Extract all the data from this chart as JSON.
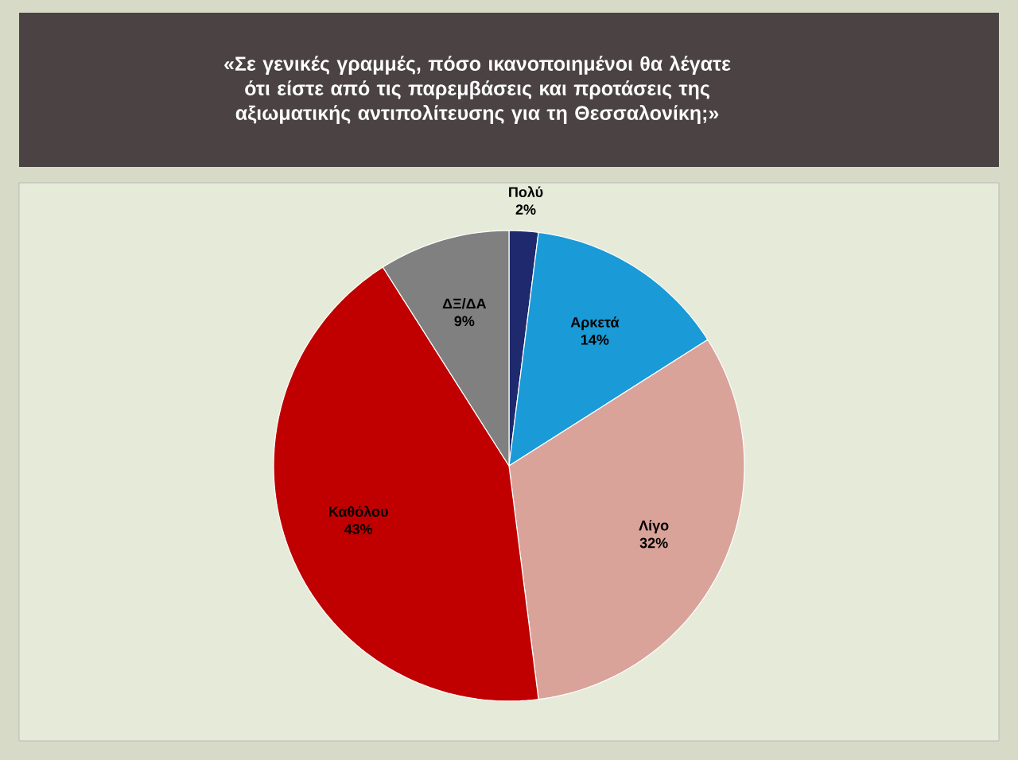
{
  "chart_data": {
    "type": "pie",
    "title": "«Σε γενικές γραμμές, πόσο ικανοποιημένοι θα λέγατε ότι είστε από τις παρεμβάσεις και προτάσεις της αξιωματικής αντιπολίτευσης για τη Θεσσαλονίκη;»",
    "categories": [
      "Πολύ",
      "Αρκετά",
      "Λίγο",
      "Καθόλου",
      "ΔΞ/ΔΑ"
    ],
    "values": [
      2,
      14,
      32,
      43,
      9
    ],
    "colors": [
      "#1f2a6e",
      "#1a9ad6",
      "#d9a39a",
      "#c00000",
      "#808080"
    ],
    "value_labels": [
      "2%",
      "14%",
      "32%",
      "43%",
      "9%"
    ]
  }
}
